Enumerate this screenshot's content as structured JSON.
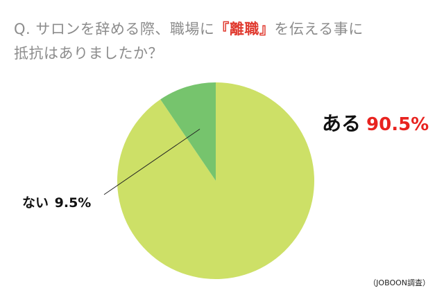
{
  "title": {
    "line1_before": "Q. サロンを辞める際、職場に",
    "line1_highlight": "『離職』",
    "line1_after": "を伝える事に",
    "line2": "抵抗はありましたか？"
  },
  "source": "（JOBOON調査）",
  "colors": {
    "title": "#8c8c8c",
    "highlight": "#e03a2f",
    "percent_red": "#e8231f"
  },
  "chart_data": {
    "type": "pie",
    "title": "Q. サロンを辞める際、職場に『離職』を伝える事に抵抗はありましたか？",
    "categories": [
      "ある",
      "ない"
    ],
    "values": [
      90.5,
      9.5
    ],
    "value_labels": [
      "90.5%",
      "9.5%"
    ],
    "colors": [
      "#cde067",
      "#76c46d"
    ],
    "start": "12 o'clock",
    "direction": "clockwise from ない"
  }
}
